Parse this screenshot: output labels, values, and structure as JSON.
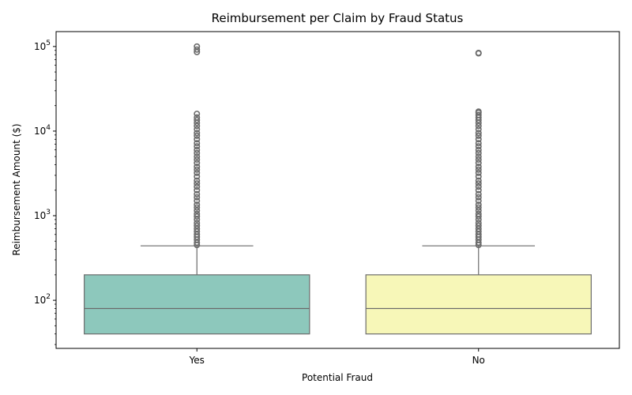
{
  "chart_data": {
    "type": "box",
    "title": "Reimbursement per Claim by Fraud Status",
    "xlabel": "Potential Fraud",
    "ylabel": "Reimbursement Amount ($)",
    "y_scale": "log",
    "ylim": [
      27,
      150000
    ],
    "y_ticks": [
      {
        "value": 100,
        "base": "10",
        "exp": "2"
      },
      {
        "value": 1000,
        "base": "10",
        "exp": "3"
      },
      {
        "value": 10000,
        "base": "10",
        "exp": "4"
      },
      {
        "value": 100000,
        "base": "10",
        "exp": "5"
      }
    ],
    "grid": false,
    "legend": "none",
    "categories": [
      "Yes",
      "No"
    ],
    "boxes": [
      {
        "category": "Yes",
        "color": "#8dc8bc",
        "whisker_low": 40,
        "q1": 40,
        "median": 80,
        "q3": 200,
        "whisker_high": 440,
        "outliers": [
          450,
          480,
          520,
          560,
          600,
          650,
          700,
          760,
          820,
          900,
          980,
          1050,
          1150,
          1250,
          1350,
          1500,
          1650,
          1800,
          2000,
          2200,
          2400,
          2600,
          2900,
          3200,
          3500,
          3800,
          4200,
          4600,
          5000,
          5500,
          6000,
          6600,
          7200,
          8000,
          8800,
          9500,
          10500,
          11500,
          12500,
          13500,
          14500,
          16000,
          86000,
          92000,
          100000
        ]
      },
      {
        "category": "No",
        "color": "#f7f7b8",
        "whisker_low": 40,
        "q1": 40,
        "median": 80,
        "q3": 200,
        "whisker_high": 440,
        "outliers": [
          450,
          480,
          520,
          560,
          600,
          650,
          700,
          760,
          820,
          900,
          980,
          1050,
          1150,
          1250,
          1350,
          1500,
          1650,
          1800,
          2000,
          2200,
          2400,
          2600,
          2900,
          3200,
          3500,
          3800,
          4200,
          4600,
          5000,
          5500,
          6000,
          6600,
          7200,
          8000,
          8800,
          9500,
          10500,
          11500,
          12500,
          13500,
          14500,
          15500,
          16500,
          17000,
          83000,
          84000
        ]
      }
    ],
    "element_color": "#6b6b6b"
  }
}
